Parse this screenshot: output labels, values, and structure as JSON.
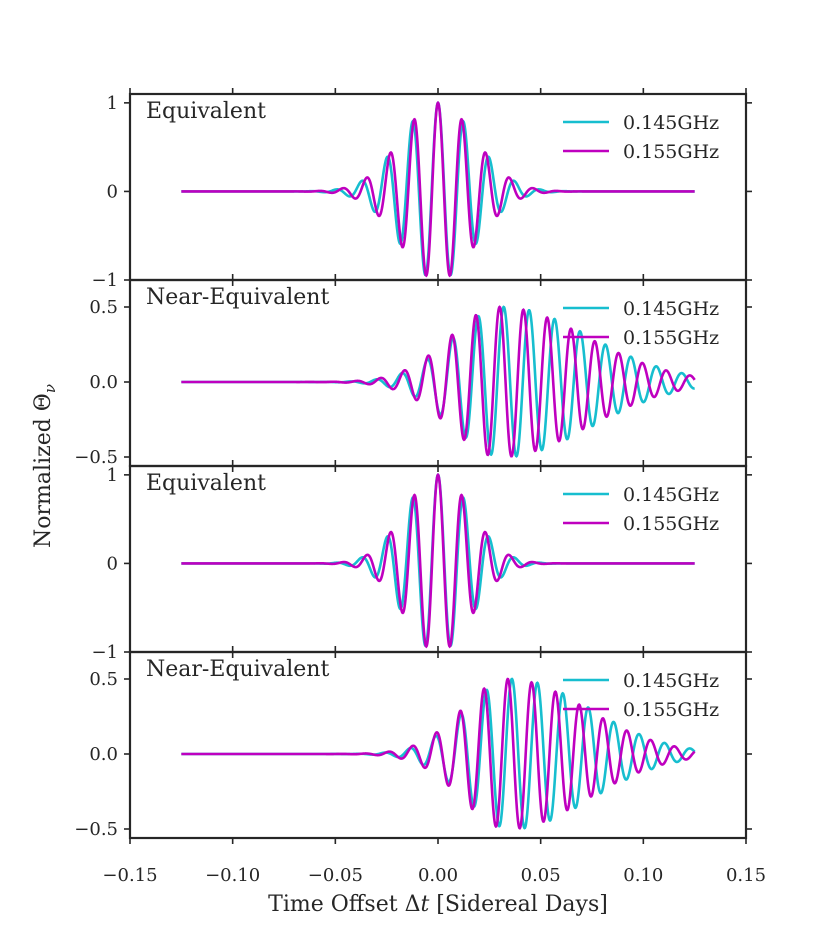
{
  "chart_data": {
    "type": "line",
    "ylabel": "Normalized Θ_ν",
    "xlabel": "Time Offset Δt [Sidereal Days]",
    "xlim": [
      -0.15,
      0.15
    ],
    "x_ticks": [
      "−0.15",
      "−0.10",
      "−0.05",
      "0.00",
      "0.05",
      "0.10",
      "0.15"
    ],
    "x_tick_values": [
      -0.15,
      -0.1,
      -0.05,
      0.0,
      0.05,
      0.1,
      0.15
    ],
    "x_range_of_data": [
      -0.125,
      0.125
    ],
    "series_colors": {
      "0.145GHz": "#17becf",
      "0.155GHz": "#bf00bf"
    },
    "legend_position": "top-right",
    "panels": [
      {
        "label": "Equivalent",
        "ylim": [
          -1,
          1.1
        ],
        "y_ticks": [
          "1",
          "0",
          "−1"
        ],
        "y_tick_values": [
          1,
          0,
          -1
        ],
        "legend": [
          "0.145GHz",
          "0.155GHz"
        ],
        "series": [
          {
            "name": "0.145GHz",
            "color": "#17becf",
            "amp": 1.0,
            "center": 0.0,
            "width": 0.018,
            "period": 0.0124,
            "skew": 0.0
          },
          {
            "name": "0.155GHz",
            "color": "#bf00bf",
            "amp": 1.0,
            "center": 0.0,
            "width": 0.018,
            "period": 0.0116,
            "skew": 0.0
          }
        ]
      },
      {
        "label": "Near-Equivalent",
        "ylim": [
          -0.56,
          0.68
        ],
        "y_ticks": [
          "0.5",
          "0.0",
          "−0.5"
        ],
        "y_tick_values": [
          0.5,
          0.0,
          -0.5
        ],
        "legend": [
          "0.145GHz",
          "0.155GHz"
        ],
        "series": [
          {
            "name": "0.145GHz",
            "color": "#17becf",
            "amp": 0.5,
            "center": 0.032,
            "width": 0.024,
            "period": 0.0124,
            "skew": 0.018
          },
          {
            "name": "0.155GHz",
            "color": "#bf00bf",
            "amp": 0.5,
            "center": 0.03,
            "width": 0.024,
            "period": 0.0116,
            "skew": 0.018
          }
        ]
      },
      {
        "label": "Equivalent",
        "ylim": [
          -1,
          1.1
        ],
        "y_ticks": [
          "1",
          "0",
          "−1"
        ],
        "y_tick_values": [
          1,
          0,
          -1
        ],
        "legend": [
          "0.145GHz",
          "0.155GHz"
        ],
        "series": [
          {
            "name": "0.145GHz",
            "color": "#17becf",
            "amp": 1.0,
            "center": 0.0,
            "width": 0.016,
            "period": 0.0124,
            "skew": 0.0
          },
          {
            "name": "0.155GHz",
            "color": "#bf00bf",
            "amp": 1.0,
            "center": 0.0,
            "width": 0.016,
            "period": 0.0116,
            "skew": 0.0
          }
        ]
      },
      {
        "label": "Near-Equivalent",
        "ylim": [
          -0.56,
          0.68
        ],
        "y_ticks": [
          "0.5",
          "0.0",
          "−0.5"
        ],
        "y_tick_values": [
          0.5,
          0.0,
          -0.5
        ],
        "legend": [
          "0.145GHz",
          "0.155GHz"
        ],
        "series": [
          {
            "name": "0.145GHz",
            "color": "#17becf",
            "amp": 0.5,
            "center": 0.036,
            "width": 0.022,
            "period": 0.0124,
            "skew": 0.016
          },
          {
            "name": "0.155GHz",
            "color": "#bf00bf",
            "amp": 0.5,
            "center": 0.034,
            "width": 0.022,
            "period": 0.0116,
            "skew": 0.016
          }
        ]
      }
    ]
  }
}
